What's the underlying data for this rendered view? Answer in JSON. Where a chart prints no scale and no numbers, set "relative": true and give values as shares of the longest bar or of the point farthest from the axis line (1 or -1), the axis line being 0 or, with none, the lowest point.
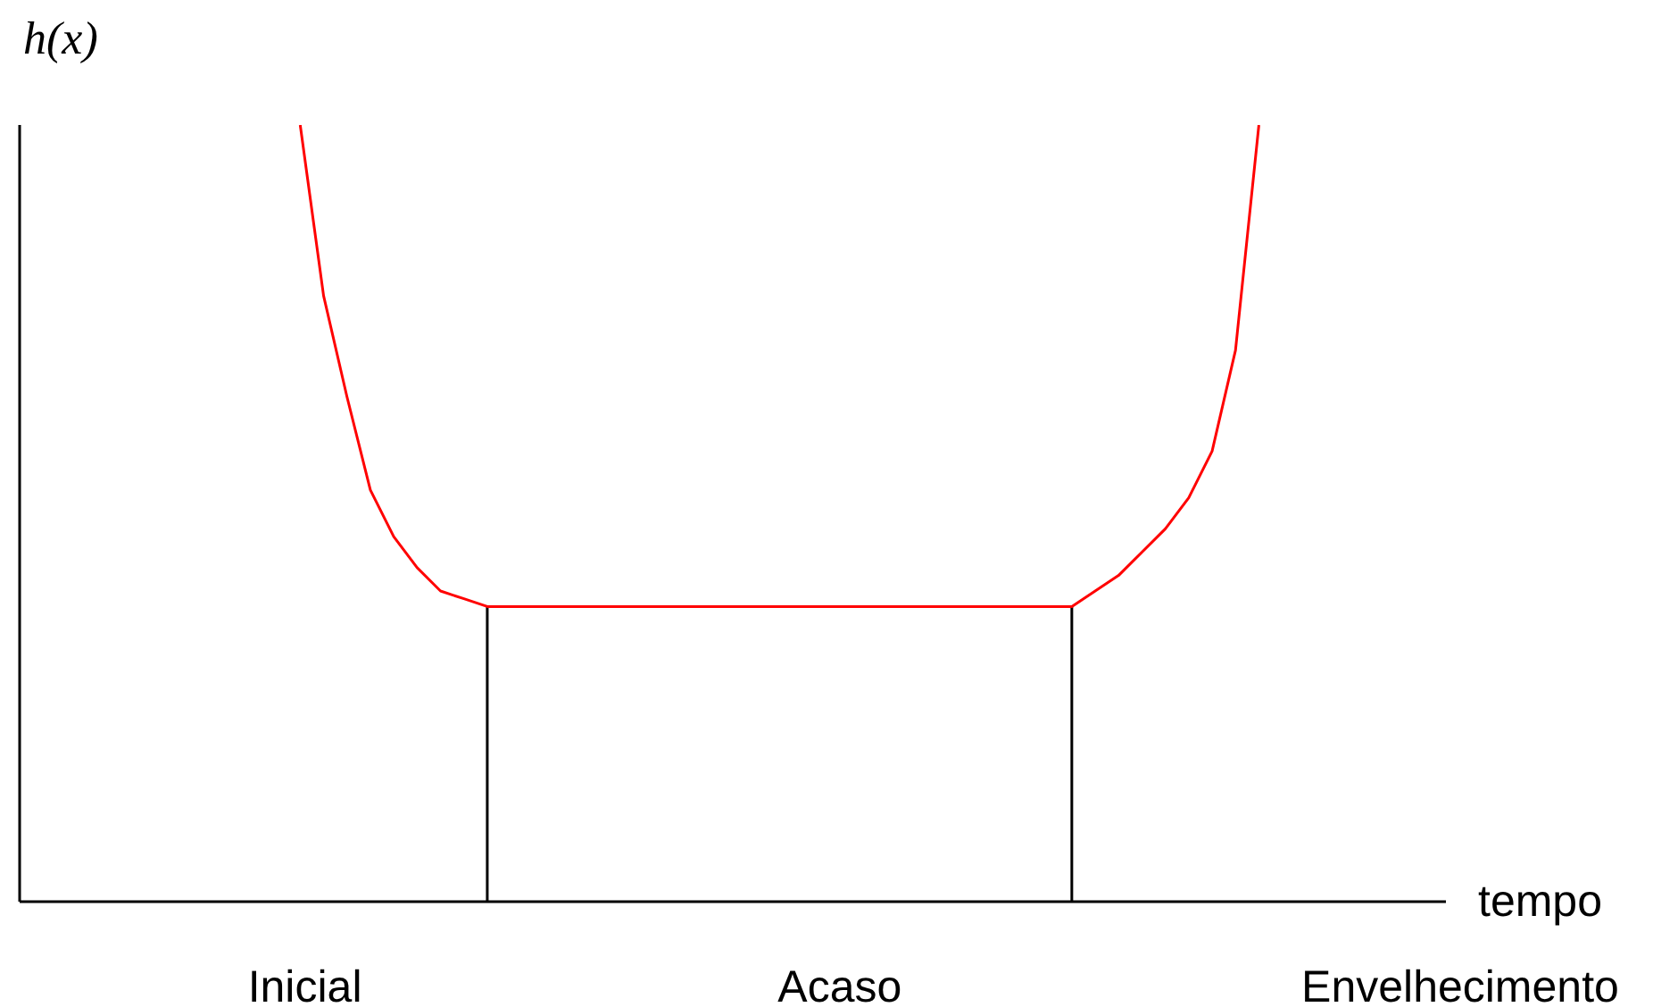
{
  "chart_data": {
    "type": "line",
    "relative": true,
    "ylabel": "h(x)",
    "xlabel": "tempo",
    "marker": "none",
    "annotations": [
      "Inicial",
      "Acaso",
      "Envelhecimento"
    ],
    "categories": [
      null,
      null,
      null,
      null,
      null,
      null,
      null,
      null,
      null,
      null,
      null,
      null,
      null,
      null,
      null,
      null,
      null,
      null,
      null,
      null,
      null,
      null,
      null,
      null,
      null,
      null,
      null,
      null,
      null,
      null,
      null,
      null,
      null,
      null,
      null,
      null,
      null,
      null,
      null,
      null,
      null,
      null,
      null,
      null,
      null,
      null,
      null,
      null,
      null,
      null,
      null,
      null,
      null,
      null,
      null,
      null,
      null,
      null,
      null,
      null,
      null,
      null
    ],
    "series": [
      {
        "color": "#ff0000",
        "values": [
          null,
          null,
          null,
          null,
          null,
          null,
          null,
          null,
          null,
          null,
          null,
          null,
          1,
          0.78,
          0.65,
          0.53,
          0.47,
          0.43,
          0.4,
          0.39,
          0.38,
          0.38,
          0.38,
          0.38,
          0.38,
          0.38,
          0.38,
          0.38,
          0.38,
          0.38,
          0.38,
          0.38,
          0.38,
          0.38,
          0.38,
          0.38,
          0.38,
          0.38,
          0.38,
          0.38,
          0.38,
          0.38,
          0.38,
          0.38,
          0.38,
          0.38,
          0.4,
          0.42,
          0.45,
          0.48,
          0.52,
          0.58,
          0.71,
          1,
          null,
          null,
          null,
          null,
          null,
          null,
          null,
          null
        ]
      }
    ]
  }
}
